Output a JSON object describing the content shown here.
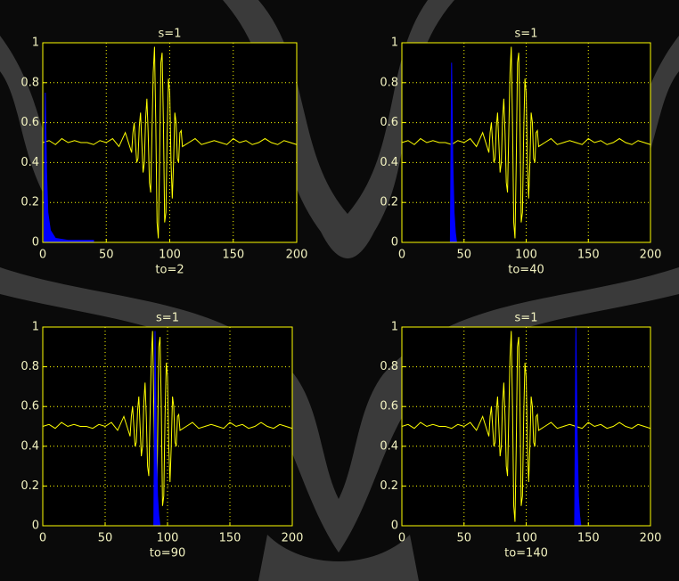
{
  "chart_data": [
    {
      "type": "line",
      "title": "s=1",
      "xlabel": "to=2",
      "xlim": [
        0,
        200
      ],
      "ylim": [
        0,
        1
      ],
      "xticks": [
        0,
        50,
        100,
        150,
        200
      ],
      "yticks": [
        0,
        0.2,
        0.4,
        0.6,
        0.8,
        1
      ],
      "grid": true,
      "series": [
        {
          "color": "#ffff00",
          "x": [
            0,
            5,
            10,
            15,
            20,
            25,
            30,
            35,
            40,
            45,
            50,
            55,
            60,
            65,
            70,
            71,
            72,
            73,
            74,
            75,
            76,
            77,
            78,
            79,
            80,
            81,
            82,
            83,
            84,
            85,
            86,
            87,
            88,
            89,
            90,
            91,
            92,
            93,
            94,
            95,
            96,
            97,
            98,
            99,
            100,
            101,
            102,
            103,
            104,
            105,
            106,
            107,
            108,
            109,
            110,
            115,
            120,
            125,
            130,
            135,
            140,
            145,
            150,
            155,
            160,
            165,
            170,
            175,
            180,
            185,
            190,
            195,
            200
          ],
          "values": [
            0.5,
            0.51,
            0.49,
            0.52,
            0.5,
            0.51,
            0.5,
            0.5,
            0.49,
            0.51,
            0.5,
            0.52,
            0.48,
            0.55,
            0.45,
            0.55,
            0.6,
            0.5,
            0.4,
            0.42,
            0.58,
            0.65,
            0.5,
            0.35,
            0.4,
            0.62,
            0.72,
            0.55,
            0.3,
            0.25,
            0.55,
            0.85,
            0.98,
            0.6,
            0.1,
            0.02,
            0.4,
            0.9,
            0.95,
            0.6,
            0.1,
            0.15,
            0.55,
            0.82,
            0.75,
            0.4,
            0.22,
            0.4,
            0.65,
            0.6,
            0.42,
            0.4,
            0.55,
            0.56,
            0.48,
            0.5,
            0.52,
            0.49,
            0.5,
            0.51,
            0.5,
            0.49,
            0.52,
            0.5,
            0.51,
            0.49,
            0.5,
            0.52,
            0.5,
            0.49,
            0.51,
            0.5,
            0.49
          ]
        },
        {
          "color": "#0000ff",
          "fill": true,
          "x": [
            1,
            2,
            3,
            4,
            6,
            10,
            20,
            40
          ],
          "values": [
            0,
            0.75,
            0.35,
            0.15,
            0.06,
            0.02,
            0.01,
            0.01
          ]
        }
      ]
    },
    {
      "type": "line",
      "title": "s=1",
      "xlabel": "to=40",
      "xlim": [
        0,
        200
      ],
      "ylim": [
        0,
        1
      ],
      "xticks": [
        0,
        50,
        100,
        150,
        200
      ],
      "yticks": [
        0,
        0.2,
        0.4,
        0.6,
        0.8,
        1
      ],
      "grid": true,
      "series": [
        {
          "color": "#ffff00",
          "x": [
            0,
            5,
            10,
            15,
            20,
            25,
            30,
            35,
            40,
            45,
            50,
            55,
            60,
            65,
            70,
            71,
            72,
            73,
            74,
            75,
            76,
            77,
            78,
            79,
            80,
            81,
            82,
            83,
            84,
            85,
            86,
            87,
            88,
            89,
            90,
            91,
            92,
            93,
            94,
            95,
            96,
            97,
            98,
            99,
            100,
            101,
            102,
            103,
            104,
            105,
            106,
            107,
            108,
            109,
            110,
            115,
            120,
            125,
            130,
            135,
            140,
            145,
            150,
            155,
            160,
            165,
            170,
            175,
            180,
            185,
            190,
            195,
            200
          ],
          "values": [
            0.5,
            0.51,
            0.49,
            0.52,
            0.5,
            0.51,
            0.5,
            0.5,
            0.49,
            0.51,
            0.5,
            0.52,
            0.48,
            0.55,
            0.45,
            0.55,
            0.6,
            0.5,
            0.4,
            0.42,
            0.58,
            0.65,
            0.5,
            0.35,
            0.4,
            0.62,
            0.72,
            0.55,
            0.3,
            0.25,
            0.55,
            0.85,
            0.98,
            0.6,
            0.1,
            0.02,
            0.4,
            0.9,
            0.95,
            0.6,
            0.1,
            0.15,
            0.55,
            0.82,
            0.75,
            0.4,
            0.22,
            0.4,
            0.65,
            0.6,
            0.42,
            0.4,
            0.55,
            0.56,
            0.48,
            0.5,
            0.52,
            0.49,
            0.5,
            0.51,
            0.5,
            0.49,
            0.52,
            0.5,
            0.51,
            0.49,
            0.5,
            0.52,
            0.5,
            0.49,
            0.51,
            0.5,
            0.49
          ]
        },
        {
          "color": "#0000ff",
          "fill": true,
          "x": [
            39,
            40,
            41,
            42,
            43,
            44
          ],
          "values": [
            0,
            0.9,
            0.4,
            0.15,
            0.05,
            0
          ]
        }
      ]
    },
    {
      "type": "line",
      "title": "s=1",
      "xlabel": "to=90",
      "xlim": [
        0,
        200
      ],
      "ylim": [
        0,
        1
      ],
      "xticks": [
        0,
        50,
        100,
        150,
        200
      ],
      "yticks": [
        0,
        0.2,
        0.4,
        0.6,
        0.8,
        1
      ],
      "grid": true,
      "series": [
        {
          "color": "#ffff00",
          "x": [
            0,
            5,
            10,
            15,
            20,
            25,
            30,
            35,
            40,
            45,
            50,
            55,
            60,
            65,
            70,
            71,
            72,
            73,
            74,
            75,
            76,
            77,
            78,
            79,
            80,
            81,
            82,
            83,
            84,
            85,
            86,
            87,
            88,
            89,
            90,
            91,
            92,
            93,
            94,
            95,
            96,
            97,
            98,
            99,
            100,
            101,
            102,
            103,
            104,
            105,
            106,
            107,
            108,
            109,
            110,
            115,
            120,
            125,
            130,
            135,
            140,
            145,
            150,
            155,
            160,
            165,
            170,
            175,
            180,
            185,
            190,
            195,
            200
          ],
          "values": [
            0.5,
            0.51,
            0.49,
            0.52,
            0.5,
            0.51,
            0.5,
            0.5,
            0.49,
            0.51,
            0.5,
            0.52,
            0.48,
            0.55,
            0.45,
            0.55,
            0.6,
            0.5,
            0.4,
            0.42,
            0.58,
            0.65,
            0.5,
            0.35,
            0.4,
            0.62,
            0.72,
            0.55,
            0.3,
            0.25,
            0.55,
            0.85,
            0.98,
            0.6,
            0.1,
            0.02,
            0.4,
            0.9,
            0.95,
            0.6,
            0.1,
            0.15,
            0.55,
            0.82,
            0.75,
            0.4,
            0.22,
            0.4,
            0.65,
            0.6,
            0.42,
            0.4,
            0.55,
            0.56,
            0.48,
            0.5,
            0.52,
            0.49,
            0.5,
            0.51,
            0.5,
            0.49,
            0.52,
            0.5,
            0.51,
            0.49,
            0.5,
            0.52,
            0.5,
            0.49,
            0.51,
            0.5,
            0.49
          ]
        },
        {
          "color": "#0000ff",
          "fill": true,
          "x": [
            89,
            90,
            91,
            92,
            93,
            94
          ],
          "values": [
            0,
            0.98,
            0.45,
            0.15,
            0.05,
            0
          ]
        }
      ]
    },
    {
      "type": "line",
      "title": "s=1",
      "xlabel": "to=140",
      "xlim": [
        0,
        200
      ],
      "ylim": [
        0,
        1
      ],
      "xticks": [
        0,
        50,
        100,
        150,
        200
      ],
      "yticks": [
        0,
        0.2,
        0.4,
        0.6,
        0.8,
        1
      ],
      "grid": true,
      "series": [
        {
          "color": "#ffff00",
          "x": [
            0,
            5,
            10,
            15,
            20,
            25,
            30,
            35,
            40,
            45,
            50,
            55,
            60,
            65,
            70,
            71,
            72,
            73,
            74,
            75,
            76,
            77,
            78,
            79,
            80,
            81,
            82,
            83,
            84,
            85,
            86,
            87,
            88,
            89,
            90,
            91,
            92,
            93,
            94,
            95,
            96,
            97,
            98,
            99,
            100,
            101,
            102,
            103,
            104,
            105,
            106,
            107,
            108,
            109,
            110,
            115,
            120,
            125,
            130,
            135,
            140,
            145,
            150,
            155,
            160,
            165,
            170,
            175,
            180,
            185,
            190,
            195,
            200
          ],
          "values": [
            0.5,
            0.51,
            0.49,
            0.52,
            0.5,
            0.51,
            0.5,
            0.5,
            0.49,
            0.51,
            0.5,
            0.52,
            0.48,
            0.55,
            0.45,
            0.55,
            0.6,
            0.5,
            0.4,
            0.42,
            0.58,
            0.65,
            0.5,
            0.35,
            0.4,
            0.62,
            0.72,
            0.55,
            0.3,
            0.25,
            0.55,
            0.85,
            0.98,
            0.6,
            0.1,
            0.02,
            0.4,
            0.9,
            0.95,
            0.6,
            0.1,
            0.15,
            0.55,
            0.82,
            0.75,
            0.4,
            0.22,
            0.4,
            0.65,
            0.6,
            0.42,
            0.4,
            0.55,
            0.56,
            0.48,
            0.5,
            0.52,
            0.49,
            0.5,
            0.51,
            0.5,
            0.49,
            0.52,
            0.5,
            0.51,
            0.49,
            0.5,
            0.52,
            0.5,
            0.49,
            0.51,
            0.5,
            0.49
          ]
        },
        {
          "color": "#0000ff",
          "fill": true,
          "x": [
            139,
            140,
            141,
            142,
            143,
            144
          ],
          "values": [
            0,
            1,
            0.45,
            0.15,
            0.05,
            0
          ]
        }
      ]
    }
  ]
}
